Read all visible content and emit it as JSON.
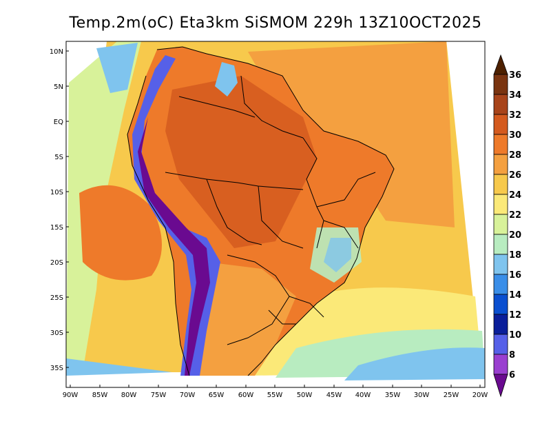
{
  "title": "Temp.2m(oC) Eta3km SiSMOM 229h 13Z10OCT2025",
  "axes": {
    "lat_labels": [
      "10N",
      "5N",
      "EQ",
      "5S",
      "10S",
      "15S",
      "20S",
      "25S",
      "30S",
      "35S"
    ],
    "lon_labels": [
      "90W",
      "85W",
      "80W",
      "75W",
      "70W",
      "65W",
      "60W",
      "55W",
      "50W",
      "45W",
      "40W",
      "35W",
      "30W",
      "25W",
      "20W"
    ]
  },
  "colorbar": {
    "unit": "oC",
    "labels": [
      "36",
      "34",
      "32",
      "30",
      "28",
      "26",
      "24",
      "22",
      "20",
      "18",
      "16",
      "14",
      "12",
      "10",
      "8",
      "6"
    ],
    "colors": [
      "#4d2000",
      "#7a3410",
      "#a8441a",
      "#d45a1e",
      "#ee7a2a",
      "#f4a040",
      "#f7c94c",
      "#fbe978",
      "#d8f29a",
      "#b8ecc0",
      "#7fc4ee",
      "#3a8ee8",
      "#0a4fd0",
      "#0a1e9a",
      "#5660e8",
      "#9a3fd0",
      "#6a0a90"
    ]
  },
  "colors": {
    "ocean_warm": "#f4a040",
    "ocean_mild": "#f7c94c",
    "ocean_cool": "#fbe978",
    "land_hot": "#ee7a2a",
    "land_very_hot": "#d45a1e",
    "andes_cold": "#5660e8",
    "andes_coldest": "#6a0a90"
  }
}
